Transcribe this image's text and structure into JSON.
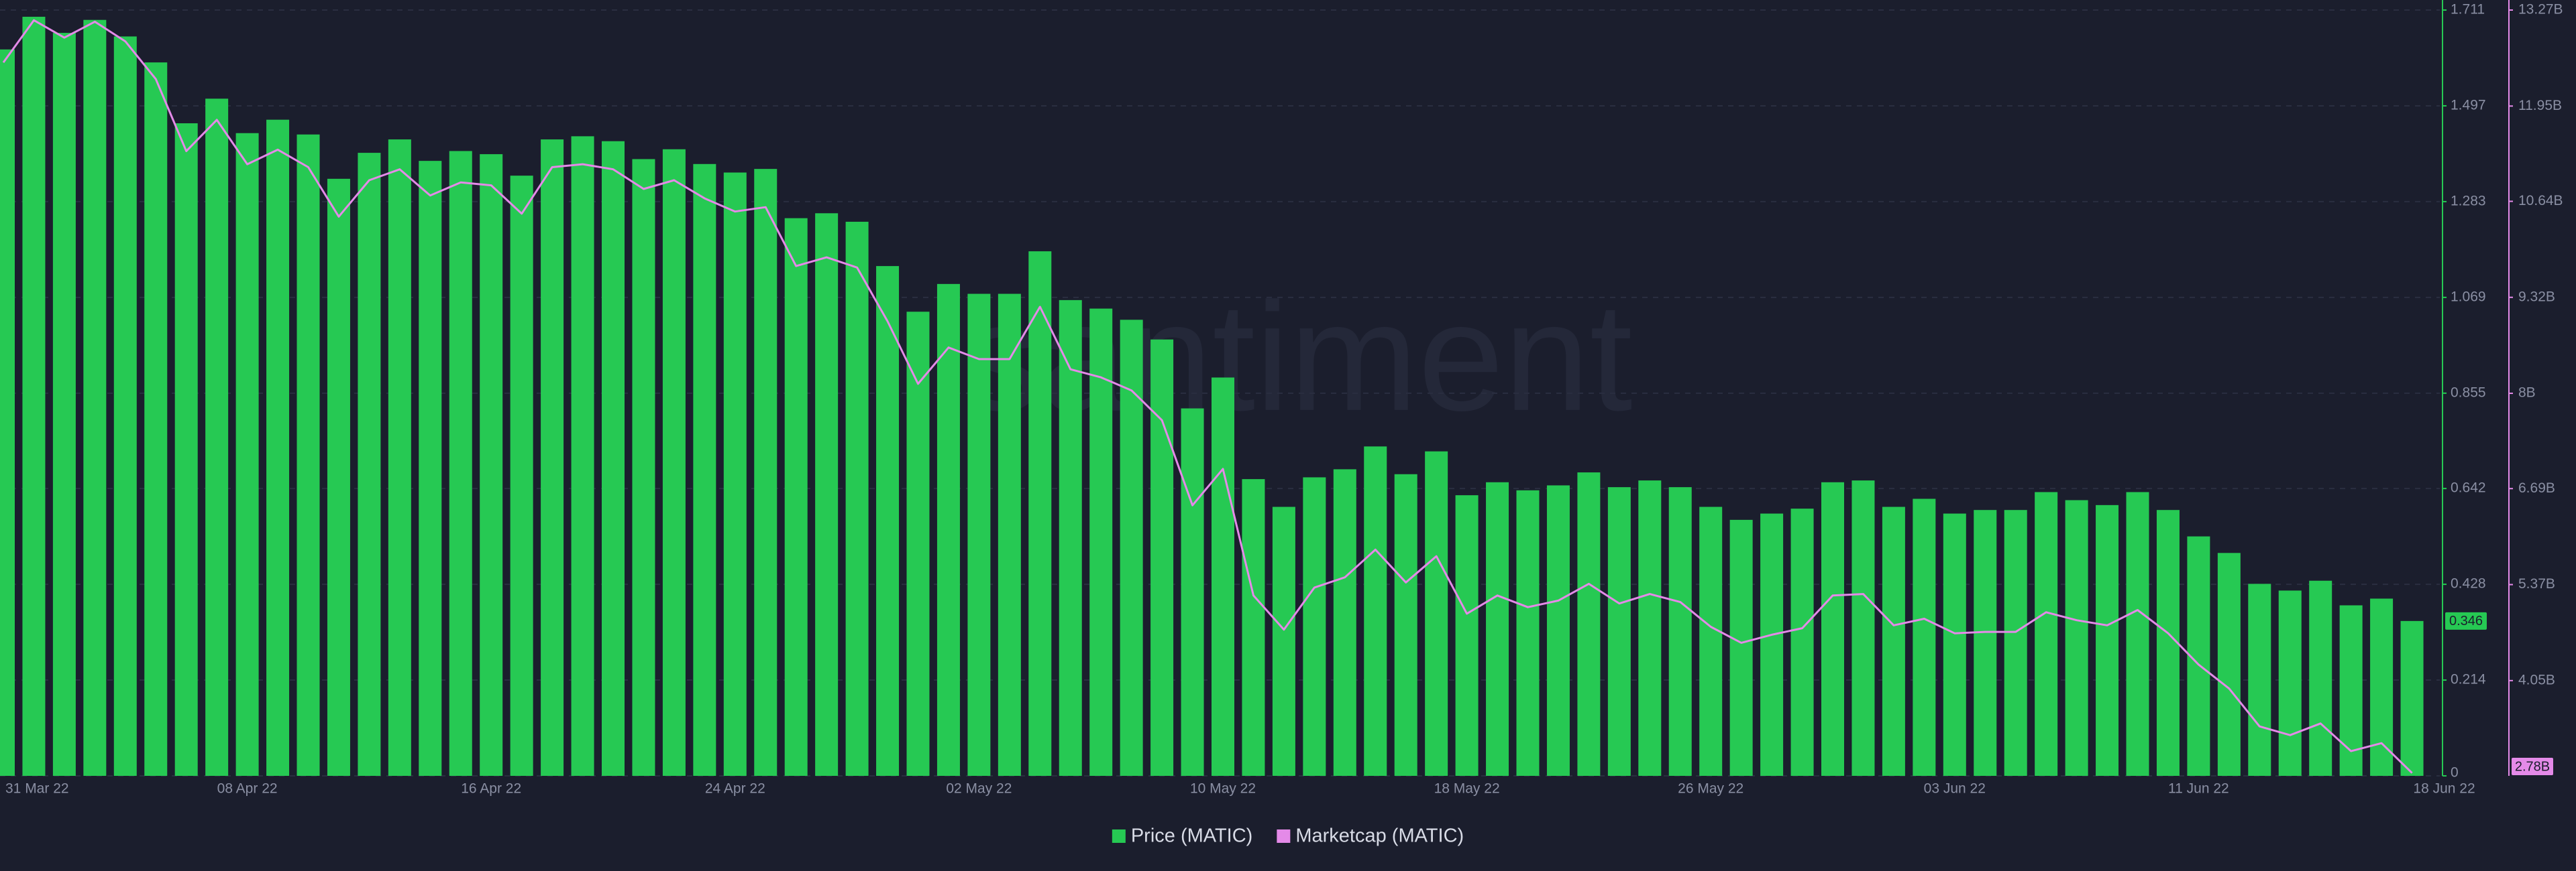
{
  "chart_data": {
    "type": "bar",
    "watermark": "santiment",
    "categories": [
      "31 Mar 22",
      null,
      null,
      null,
      null,
      null,
      null,
      null,
      "08 Apr 22",
      null,
      null,
      null,
      null,
      null,
      null,
      null,
      "16 Apr 22",
      null,
      null,
      null,
      null,
      null,
      null,
      null,
      "24 Apr 22",
      null,
      null,
      null,
      null,
      null,
      null,
      null,
      "02 May 22",
      null,
      null,
      null,
      null,
      null,
      null,
      null,
      "10 May 22",
      null,
      null,
      null,
      null,
      null,
      null,
      null,
      "18 May 22",
      null,
      null,
      null,
      null,
      null,
      null,
      null,
      "26 May 22",
      null,
      null,
      null,
      null,
      null,
      null,
      null,
      "03 Jun 22",
      null,
      null,
      null,
      null,
      null,
      null,
      null,
      "11 Jun 22",
      null,
      null,
      null,
      null,
      null,
      null,
      "18 Jun 22"
    ],
    "series": [
      {
        "name": "Price (MATIC)",
        "type": "bar",
        "axis": "y",
        "color": "#26c953",
        "values": [
          1.623,
          1.696,
          1.66,
          1.689,
          1.652,
          1.594,
          1.458,
          1.513,
          1.436,
          1.466,
          1.433,
          1.334,
          1.392,
          1.422,
          1.374,
          1.396,
          1.389,
          1.341,
          1.422,
          1.429,
          1.418,
          1.378,
          1.4,
          1.367,
          1.348,
          1.356,
          1.246,
          1.257,
          1.238,
          1.139,
          1.037,
          1.099,
          1.077,
          1.077,
          1.172,
          1.063,
          1.044,
          1.019,
          0.975,
          0.821,
          0.89,
          0.663,
          0.601,
          0.667,
          0.685,
          0.736,
          0.674,
          0.725,
          0.627,
          0.656,
          0.638,
          0.649,
          0.678,
          0.645,
          0.66,
          0.645,
          0.601,
          0.572,
          0.586,
          0.597,
          0.656,
          0.66,
          0.601,
          0.619,
          0.586,
          0.594,
          0.594,
          0.634,
          0.616,
          0.605,
          0.634,
          0.594,
          0.535,
          0.498,
          0.429,
          0.414,
          0.436,
          0.381,
          0.396,
          0.346
        ]
      },
      {
        "name": "Marketcap (MATIC)",
        "type": "line",
        "axis": "y2",
        "color": "#e48ae8",
        "values": [
          12.55,
          13.13,
          12.89,
          13.11,
          12.84,
          12.32,
          11.33,
          11.76,
          11.15,
          11.35,
          11.11,
          10.43,
          10.93,
          11.08,
          10.72,
          10.9,
          10.86,
          10.47,
          11.11,
          11.15,
          11.08,
          10.81,
          10.93,
          10.68,
          10.5,
          10.56,
          9.75,
          9.87,
          9.73,
          8.99,
          8.13,
          8.63,
          8.47,
          8.47,
          9.19,
          8.33,
          8.22,
          8.04,
          7.63,
          6.46,
          6.96,
          5.22,
          4.75,
          5.33,
          5.47,
          5.85,
          5.4,
          5.76,
          4.97,
          5.22,
          5.06,
          5.15,
          5.38,
          5.11,
          5.24,
          5.13,
          4.79,
          4.57,
          4.68,
          4.77,
          5.22,
          5.24,
          4.81,
          4.9,
          4.7,
          4.72,
          4.72,
          4.99,
          4.88,
          4.81,
          5.02,
          4.7,
          4.27,
          3.94,
          3.42,
          3.3,
          3.46,
          3.08,
          3.19,
          2.78
        ],
        "value_labels": [
          null,
          null,
          null,
          null,
          null,
          null,
          null,
          null,
          null,
          null,
          null,
          null,
          null,
          null,
          null,
          null,
          null,
          null,
          null,
          null,
          null,
          null,
          null,
          null,
          null,
          null,
          null,
          null,
          null,
          null,
          null,
          null,
          null,
          null,
          null,
          null,
          null,
          null,
          null,
          null,
          null,
          null,
          null,
          null,
          null,
          null,
          null,
          null,
          null,
          null,
          null,
          null,
          null,
          null,
          null,
          null,
          null,
          null,
          null,
          null,
          null,
          null,
          null,
          null,
          null,
          null,
          null,
          null,
          null,
          null,
          null,
          null,
          null,
          null,
          null,
          null,
          null,
          null,
          null,
          "2.78B"
        ]
      }
    ],
    "ylim": [
      0,
      1.711
    ],
    "yticks": [
      0,
      0.214,
      0.428,
      0.642,
      0.855,
      1.069,
      1.283,
      1.497,
      1.711
    ],
    "y2lim": [
      2.74,
      13.27
    ],
    "y2ticks": [
      {
        "value": 4.05,
        "label": "4.05B"
      },
      {
        "value": 5.37,
        "label": "5.37B"
      },
      {
        "value": 6.69,
        "label": "6.69B"
      },
      {
        "value": 8,
        "label": "8B"
      },
      {
        "value": 9.32,
        "label": "9.32B"
      },
      {
        "value": 10.64,
        "label": "10.64B"
      },
      {
        "value": 11.95,
        "label": "11.95B"
      },
      {
        "value": 13.27,
        "label": "13.27B"
      }
    ],
    "grid": true
  }
}
